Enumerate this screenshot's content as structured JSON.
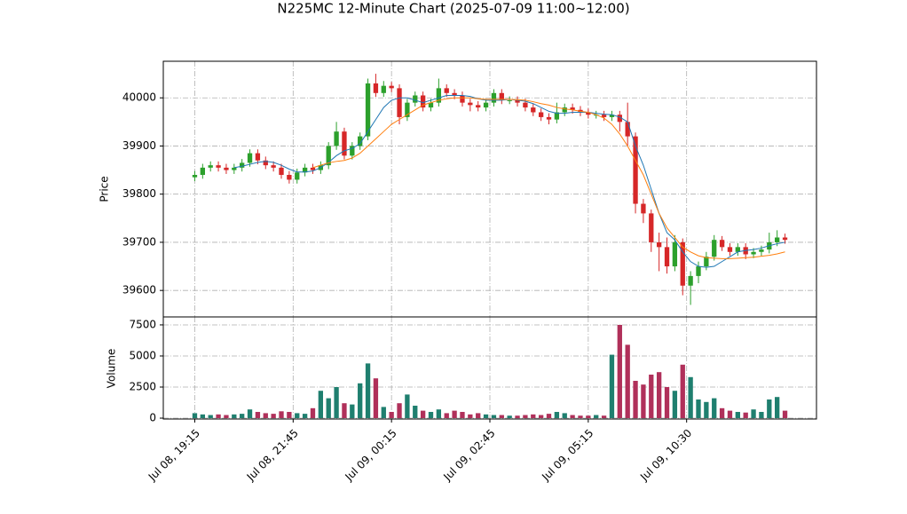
{
  "chart_data": {
    "type": "candlestick",
    "title": "N225MC 12-Minute Chart (2025-07-09 11:00~12:00)",
    "y_label": "Price",
    "up_color": "#2ca02c",
    "down_color": "#d62728",
    "open": [
      39835,
      39840,
      39855,
      39860,
      39855,
      39850,
      39855,
      39865,
      39885,
      39870,
      39860,
      39855,
      39840,
      39830,
      39845,
      39855,
      39850,
      39860,
      39900,
      39930,
      39880,
      39900,
      39920,
      40030,
      40010,
      40025,
      40020,
      39960,
      39990,
      40005,
      39980,
      39990,
      40020,
      40010,
      40005,
      39990,
      39985,
      39980,
      39990,
      40010,
      39995,
      39995,
      39990,
      39980,
      39970,
      39960,
      39955,
      39970,
      39980,
      39975,
      39970,
      39965,
      39965,
      39960,
      39965,
      39950,
      39920,
      39780,
      39760,
      39700,
      39690,
      39650,
      39700,
      39610,
      39630,
      39650,
      39670,
      39705,
      39690,
      39680,
      39690,
      39675,
      39680,
      39685,
      39700,
      39710
    ],
    "high": [
      39848,
      39863,
      39868,
      39868,
      39863,
      39863,
      39873,
      39893,
      39893,
      39878,
      39868,
      39863,
      39848,
      39853,
      39863,
      39863,
      39868,
      39908,
      39950,
      39938,
      39908,
      39928,
      40040,
      40050,
      40035,
      40033,
      40028,
      39998,
      40013,
      40013,
      39998,
      40040,
      40028,
      40018,
      40013,
      39998,
      39993,
      39998,
      40018,
      40018,
      40003,
      40003,
      39998,
      39988,
      39978,
      39968,
      39990,
      39988,
      39988,
      39983,
      39978,
      39973,
      39973,
      39973,
      39973,
      39990,
      39928,
      39790,
      39768,
      39720,
      39710,
      39715,
      39708,
      39640,
      39660,
      39680,
      39715,
      39713,
      39698,
      39698,
      39698,
      39688,
      39693,
      39720,
      39725,
      39718
    ],
    "low": [
      39827,
      39832,
      39847,
      39847,
      39842,
      39842,
      39847,
      39857,
      39862,
      39852,
      39847,
      39832,
      39822,
      39822,
      39837,
      39842,
      39842,
      39852,
      39892,
      39872,
      39872,
      39892,
      39912,
      40002,
      40002,
      40012,
      39945,
      39952,
      39982,
      39972,
      39972,
      39982,
      40002,
      39997,
      39982,
      39972,
      39972,
      39972,
      39982,
      39987,
      39987,
      39982,
      39972,
      39962,
      39952,
      39945,
      39947,
      39962,
      39967,
      39962,
      39957,
      39957,
      39952,
      39952,
      39930,
      39900,
      39760,
      39740,
      39680,
      39640,
      39635,
      39640,
      39590,
      39570,
      39615,
      39642,
      39662,
      39682,
      39672,
      39672,
      39665,
      39667,
      39672,
      39677,
      39692,
      39697
    ],
    "close": [
      39840,
      39855,
      39860,
      39855,
      39850,
      39855,
      39865,
      39885,
      39870,
      39860,
      39855,
      39840,
      39830,
      39845,
      39855,
      39850,
      39860,
      39900,
      39930,
      39880,
      39900,
      39920,
      40030,
      40010,
      40025,
      40020,
      39960,
      39990,
      40005,
      39980,
      39990,
      40020,
      40010,
      40005,
      39990,
      39985,
      39980,
      39990,
      40010,
      39995,
      39995,
      39990,
      39980,
      39970,
      39960,
      39955,
      39970,
      39980,
      39975,
      39970,
      39965,
      39965,
      39960,
      39965,
      39950,
      39920,
      39780,
      39760,
      39700,
      39690,
      39650,
      39700,
      39610,
      39630,
      39650,
      39670,
      39705,
      39690,
      39680,
      39690,
      39675,
      39680,
      39685,
      39700,
      39710,
      39705
    ],
    "moving_averages": [
      {
        "color": "#1f77b4",
        "values": [
          null,
          null,
          null,
          null,
          null,
          39855,
          39858,
          39862,
          39866,
          39868,
          39866,
          39860,
          39852,
          39846,
          39846,
          39848,
          39855,
          39866,
          39880,
          39890,
          39895,
          39905,
          39930,
          39955,
          39980,
          39995,
          40000,
          40000,
          39995,
          39990,
          39995,
          40000,
          40005,
          40005,
          40005,
          40003,
          39998,
          39995,
          39995,
          39995,
          39997,
          39995,
          39993,
          39988,
          39980,
          39972,
          39968,
          39968,
          39970,
          39970,
          39970,
          39968,
          39966,
          39965,
          39960,
          39950,
          39900,
          39860,
          39810,
          39760,
          39720,
          39705,
          39680,
          39660,
          39650,
          39648,
          39650,
          39660,
          39670,
          39680,
          39683,
          39685,
          39688,
          39693,
          39697,
          39700
        ]
      },
      {
        "color": "#ff7f0e",
        "values": [
          null,
          null,
          null,
          null,
          null,
          null,
          null,
          null,
          null,
          null,
          null,
          null,
          null,
          null,
          null,
          39855,
          39860,
          39865,
          39868,
          39870,
          39875,
          39885,
          39900,
          39915,
          39930,
          39945,
          39955,
          39965,
          39975,
          39985,
          39990,
          39995,
          39998,
          40000,
          40000,
          40000,
          39998,
          39997,
          39997,
          39997,
          39997,
          39996,
          39995,
          39992,
          39988,
          39985,
          39980,
          39977,
          39975,
          39972,
          39970,
          39965,
          39958,
          39945,
          39925,
          39900,
          39870,
          39840,
          39800,
          39760,
          39730,
          39710,
          39690,
          39680,
          39672,
          39668,
          39667,
          39666,
          39666,
          39667,
          39668,
          39669,
          39671,
          39673,
          39676,
          39680
        ]
      }
    ],
    "xlim": [
      -4,
      79
    ],
    "xticks": [
      {
        "value": 0,
        "label": "Jul 08, 19:15"
      },
      {
        "value": 12.5,
        "label": "Jul 08, 21:45"
      },
      {
        "value": 25,
        "label": "Jul 09, 00:15"
      },
      {
        "value": 37.5,
        "label": "Jul 09, 02:45"
      },
      {
        "value": 50,
        "label": "Jul 09, 05:15"
      },
      {
        "value": 62.5,
        "label": "Jul 09, 10:30"
      }
    ],
    "ylim": [
      39545,
      40076
    ],
    "yticks": [
      39600,
      39700,
      39800,
      39900,
      40000
    ],
    "grid": true,
    "volume": {
      "y_label": "Volume",
      "up_color": "#1f7f6f",
      "down_color": "#b0305a",
      "values": [
        400,
        300,
        250,
        300,
        250,
        300,
        350,
        700,
        500,
        400,
        350,
        550,
        500,
        400,
        350,
        800,
        2200,
        1600,
        2500,
        1200,
        1100,
        2800,
        4400,
        3200,
        900,
        500,
        1200,
        1900,
        1000,
        600,
        500,
        700,
        400,
        600,
        500,
        300,
        400,
        300,
        250,
        250,
        200,
        200,
        250,
        300,
        250,
        350,
        500,
        400,
        250,
        200,
        200,
        250,
        200,
        5100,
        7500,
        5900,
        3000,
        2700,
        3500,
        3700,
        2500,
        2200,
        4300,
        3300,
        1500,
        1300,
        1600,
        800,
        600,
        500,
        450,
        700,
        500,
        1500,
        1700,
        600
      ],
      "ylim": [
        -70,
        8140
      ],
      "yticks": [
        0,
        2500,
        5000,
        7500
      ]
    }
  }
}
